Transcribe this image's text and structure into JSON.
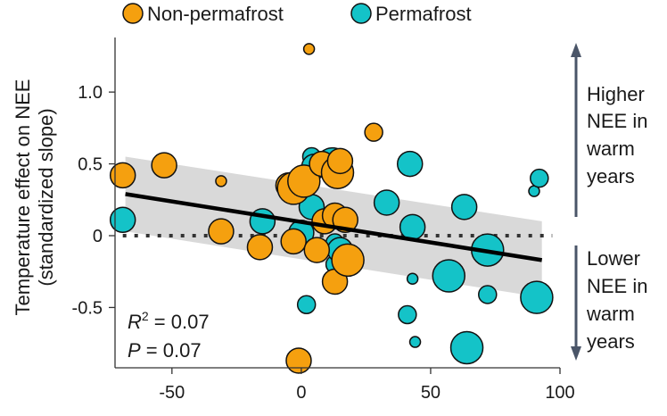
{
  "chart_data": {
    "type": "scatter",
    "title": "",
    "xlabel": "",
    "ylabel_line1": "Temperature effect on NEE",
    "ylabel_line2": "(standardized slope)",
    "xlim": [
      -72,
      100
    ],
    "ylim": [
      -0.92,
      1.38
    ],
    "x_ticks": [
      -50,
      0,
      50,
      100
    ],
    "y_ticks": [
      -0.5,
      0,
      0.5,
      1.0
    ],
    "x_tick_labels": [
      "-50",
      "0",
      "50",
      "100"
    ],
    "y_tick_labels": [
      "-0.5",
      "0",
      "0.5",
      "1.0"
    ],
    "legend": {
      "placement": "top",
      "entries": [
        {
          "label": "Non-permafrost",
          "color": "#F5A00F"
        },
        {
          "label": "Permafrost",
          "color": "#14C3C8"
        }
      ]
    },
    "stats": {
      "r2_label": "R",
      "r2_sup": "2",
      "r2_value": " = 0.07",
      "p_label": "P",
      "p_value": " = 0.07"
    },
    "annotations": {
      "upper": [
        "Higher",
        "NEE in",
        "warm",
        "years"
      ],
      "lower": [
        "Lower",
        "NEE in",
        "warm",
        "years"
      ]
    },
    "regression": {
      "x": [
        -68,
        93
      ],
      "y": [
        0.29,
        -0.17
      ],
      "band_upper": [
        0.55,
        0.1
      ],
      "band_lower": [
        0.03,
        -0.43
      ],
      "color": "#000000",
      "band_color": "#cccccc"
    },
    "zero_line": {
      "y": 0,
      "style": "dotted"
    },
    "series": [
      {
        "name": "Permafrost",
        "color": "#14C3C8",
        "points": [
          {
            "x": -69,
            "y": 0.11,
            "size": 3
          },
          {
            "x": -15,
            "y": 0.1,
            "size": 3
          },
          {
            "x": 0,
            "y": 0.02,
            "size": 3
          },
          {
            "x": 2,
            "y": -0.48,
            "size": 2
          },
          {
            "x": 4,
            "y": 0.55,
            "size": 2
          },
          {
            "x": 4,
            "y": 0.2,
            "size": 3
          },
          {
            "x": 5,
            "y": 0.48,
            "size": 3
          },
          {
            "x": 10,
            "y": 0.12,
            "size": 2
          },
          {
            "x": 12,
            "y": 0.5,
            "size": 4
          },
          {
            "x": 13,
            "y": -0.05,
            "size": 2
          },
          {
            "x": 13,
            "y": -0.2,
            "size": 2
          },
          {
            "x": 15,
            "y": -0.1,
            "size": 3
          },
          {
            "x": 33,
            "y": 0.23,
            "size": 3
          },
          {
            "x": 41,
            "y": -0.55,
            "size": 2
          },
          {
            "x": 42,
            "y": 0.5,
            "size": 3
          },
          {
            "x": 43,
            "y": -0.3,
            "size": 1
          },
          {
            "x": 43,
            "y": 0.06,
            "size": 3
          },
          {
            "x": 44,
            "y": -0.74,
            "size": 1
          },
          {
            "x": 57,
            "y": -0.28,
            "size": 4
          },
          {
            "x": 63,
            "y": 0.2,
            "size": 3
          },
          {
            "x": 64,
            "y": -0.78,
            "size": 4
          },
          {
            "x": 72,
            "y": -0.1,
            "size": 4
          },
          {
            "x": 72,
            "y": -0.41,
            "size": 2
          },
          {
            "x": 90,
            "y": 0.31,
            "size": 1
          },
          {
            "x": 92,
            "y": 0.4,
            "size": 2
          },
          {
            "x": 91,
            "y": -0.43,
            "size": 4
          }
        ]
      },
      {
        "name": "Non-permafrost",
        "color": "#F5A00F",
        "points": [
          {
            "x": -69,
            "y": 0.42,
            "size": 3
          },
          {
            "x": -53,
            "y": 0.49,
            "size": 3
          },
          {
            "x": -31,
            "y": 0.38,
            "size": 1
          },
          {
            "x": -31,
            "y": 0.03,
            "size": 3
          },
          {
            "x": -16,
            "y": -0.08,
            "size": 3
          },
          {
            "x": -5,
            "y": 0.35,
            "size": 3
          },
          {
            "x": -3,
            "y": 0.33,
            "size": 4
          },
          {
            "x": -3,
            "y": -0.04,
            "size": 3
          },
          {
            "x": -1,
            "y": -0.87,
            "size": 3
          },
          {
            "x": 1,
            "y": 0.38,
            "size": 4
          },
          {
            "x": 3,
            "y": 1.3,
            "size": 1
          },
          {
            "x": 6,
            "y": -0.1,
            "size": 3
          },
          {
            "x": 8,
            "y": 0.5,
            "size": 3
          },
          {
            "x": 9,
            "y": 0.1,
            "size": 3
          },
          {
            "x": 13,
            "y": 0.14,
            "size": 3
          },
          {
            "x": 13,
            "y": -0.32,
            "size": 3
          },
          {
            "x": 14,
            "y": 0.44,
            "size": 4
          },
          {
            "x": 15,
            "y": 0.52,
            "size": 3
          },
          {
            "x": 17,
            "y": 0.11,
            "size": 3
          },
          {
            "x": 18,
            "y": -0.17,
            "size": 4
          },
          {
            "x": 28,
            "y": 0.72,
            "size": 2
          }
        ]
      }
    ]
  }
}
